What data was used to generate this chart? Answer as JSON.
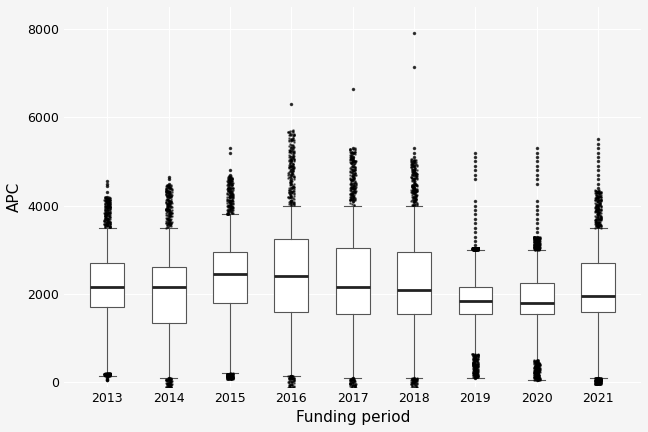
{
  "years": [
    2013,
    2014,
    2015,
    2016,
    2017,
    2018,
    2019,
    2020,
    2021
  ],
  "box_stats": {
    "2013": {
      "q1": 1700,
      "median": 2150,
      "q3": 2700,
      "whislo": 150,
      "whishi": 3500,
      "fliers_high": [
        3600,
        3700,
        3800,
        3900,
        4000,
        4100,
        4200,
        4300,
        4450,
        4500,
        4550
      ],
      "fliers_low": [
        100,
        80,
        60,
        50
      ]
    },
    "2014": {
      "q1": 1350,
      "median": 2150,
      "q3": 2600,
      "whislo": 100,
      "whishi": 3500,
      "fliers_high": [
        3600,
        3700,
        3800,
        3900,
        4000,
        4100,
        4200,
        4300,
        4400,
        4500,
        4600,
        4650
      ],
      "fliers_low": [
        90,
        70
      ]
    },
    "2015": {
      "q1": 1800,
      "median": 2450,
      "q3": 2950,
      "whislo": 200,
      "whishi": 3800,
      "fliers_high": [
        3900,
        4000,
        4100,
        4200,
        4300,
        4400,
        4500,
        4600,
        4700,
        4800,
        5200,
        5300
      ],
      "fliers_low": [
        180,
        150
      ]
    },
    "2016": {
      "q1": 1600,
      "median": 2400,
      "q3": 3250,
      "whislo": 150,
      "whishi": 4000,
      "fliers_high": [
        4100,
        4200,
        4300,
        4400,
        4500,
        4600,
        4700,
        4800,
        4900,
        5000,
        5100,
        5300,
        6300
      ],
      "fliers_low": [
        130,
        100
      ]
    },
    "2017": {
      "q1": 1550,
      "median": 2150,
      "q3": 3050,
      "whislo": 100,
      "whishi": 4000,
      "fliers_high": [
        4100,
        4200,
        4300,
        4400,
        4500,
        4600,
        4700,
        4800,
        4900,
        5000,
        5100,
        5200,
        5300,
        6650
      ],
      "fliers_low": [
        90,
        70
      ]
    },
    "2018": {
      "q1": 1550,
      "median": 2100,
      "q3": 2950,
      "whislo": 100,
      "whishi": 4000,
      "fliers_high": [
        4100,
        4200,
        4300,
        4400,
        4500,
        4600,
        4700,
        4800,
        4900,
        5000,
        5100,
        5200,
        5300,
        7150,
        7900
      ],
      "fliers_low": [
        90,
        70
      ]
    },
    "2019": {
      "q1": 1550,
      "median": 1850,
      "q3": 2150,
      "whislo": 100,
      "whishi": 3000,
      "fliers_high": [
        3100,
        3200,
        3300,
        3400,
        3500,
        3600,
        3700,
        3800,
        3900,
        4000,
        4100,
        4600,
        4700,
        4800,
        4900,
        5000,
        5100,
        5200
      ],
      "fliers_low": [
        90
      ]
    },
    "2020": {
      "q1": 1550,
      "median": 1800,
      "q3": 2250,
      "whislo": 50,
      "whishi": 3000,
      "fliers_high": [
        3100,
        3200,
        3300,
        3400,
        3500,
        3600,
        3700,
        3800,
        3900,
        4000,
        4100,
        4500,
        4600,
        4700,
        4800,
        4900,
        5000,
        5100,
        5200,
        5300
      ],
      "fliers_low": [
        40
      ]
    },
    "2021": {
      "q1": 1600,
      "median": 1950,
      "q3": 2700,
      "whislo": 100,
      "whishi": 3500,
      "fliers_high": [
        3600,
        3700,
        3800,
        3900,
        4000,
        4100,
        4200,
        4300,
        4400,
        4500,
        4600,
        4700,
        4800,
        4900,
        5000,
        5100,
        5200,
        5300,
        5400,
        5500
      ],
      "fliers_low": [
        90
      ]
    }
  },
  "title": "",
  "xlabel": "Funding period",
  "ylabel": "APC",
  "ylim": [
    -100,
    8500
  ],
  "yticks": [
    0,
    2000,
    4000,
    6000,
    8000
  ],
  "bg_color": "#f5f5f5",
  "box_color": "white",
  "box_edge_color": "#555555",
  "median_color": "#222222",
  "whisker_color": "#555555",
  "flier_color": "black",
  "flier_size": 1.5
}
